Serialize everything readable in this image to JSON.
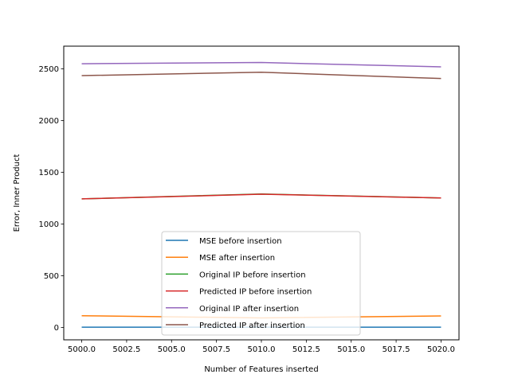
{
  "chart_data": {
    "type": "line",
    "title": "",
    "xlabel": "Number of Features inserted",
    "ylabel": "Error, Inner Product",
    "xlim": [
      4999,
      5021
    ],
    "ylim": [
      -120,
      2720
    ],
    "xticks": [
      5000.0,
      5002.5,
      5005.0,
      5007.5,
      5010.0,
      5012.5,
      5015.0,
      5017.5,
      5020.0
    ],
    "xtick_labels": [
      "5000.0",
      "5002.5",
      "5005.0",
      "5007.5",
      "5010.0",
      "5012.5",
      "5015.0",
      "5017.5",
      "5020.0"
    ],
    "yticks": [
      0,
      500,
      1000,
      1500,
      2000,
      2500
    ],
    "ytick_labels": [
      "0",
      "500",
      "1000",
      "1500",
      "2000",
      "2500"
    ],
    "grid": false,
    "legend_position": "lower center",
    "x": [
      5000,
      5010,
      5020
    ],
    "series": [
      {
        "name": "MSE before insertion",
        "color": "#1f77b4",
        "values": [
          2,
          2,
          2
        ]
      },
      {
        "name": "MSE after insertion",
        "color": "#ff7f0e",
        "values": [
          113,
          92,
          111
        ]
      },
      {
        "name": "Original IP before insertion",
        "color": "#2ca02c",
        "values": [
          1243,
          1290,
          1252
        ]
      },
      {
        "name": "Predicted IP before insertion",
        "color": "#d62728",
        "values": [
          1243,
          1288,
          1252
        ]
      },
      {
        "name": "Original IP after insertion",
        "color": "#9467bd",
        "values": [
          2550,
          2562,
          2520
        ]
      },
      {
        "name": "Predicted IP after insertion",
        "color": "#8c564b",
        "values": [
          2435,
          2468,
          2407
        ]
      }
    ]
  }
}
